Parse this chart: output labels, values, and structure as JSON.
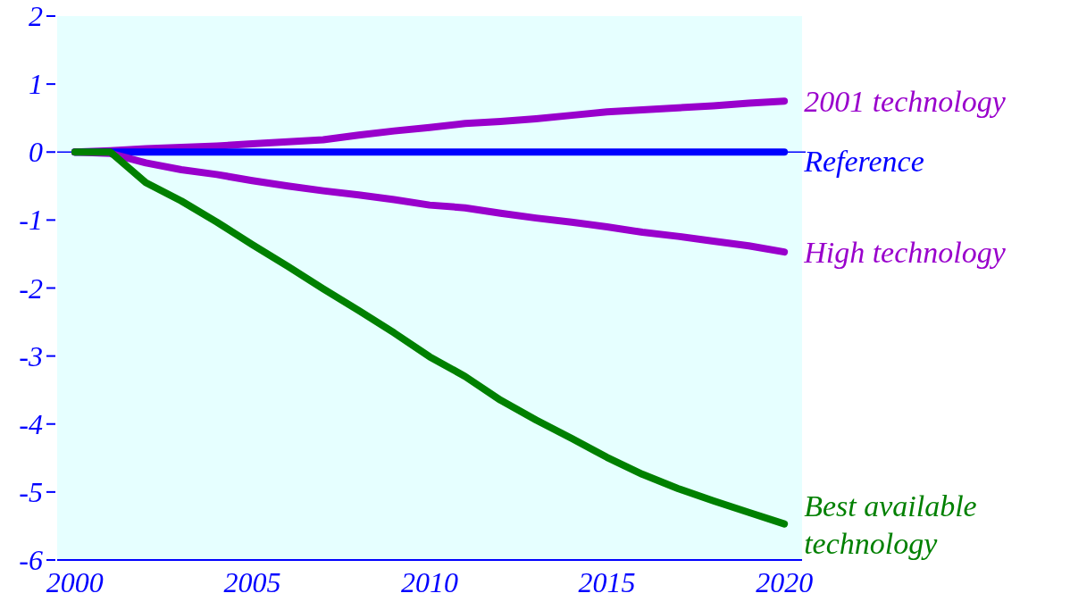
{
  "chart_data": {
    "type": "line",
    "x": [
      2000,
      2001,
      2002,
      2003,
      2004,
      2005,
      2006,
      2007,
      2008,
      2009,
      2010,
      2011,
      2012,
      2013,
      2014,
      2015,
      2016,
      2017,
      2018,
      2019,
      2020
    ],
    "series": [
      {
        "name": "2001 technology",
        "color": "#9900cc",
        "values": [
          0,
          0.02,
          0.05,
          0.07,
          0.09,
          0.12,
          0.15,
          0.18,
          0.25,
          0.31,
          0.36,
          0.42,
          0.45,
          0.49,
          0.54,
          0.59,
          0.62,
          0.65,
          0.68,
          0.72,
          0.75
        ]
      },
      {
        "name": "Reference",
        "color": "#0000ff",
        "values": [
          0,
          0,
          0,
          0,
          0,
          0,
          0,
          0,
          0,
          0,
          0,
          0,
          0,
          0,
          0,
          0,
          0,
          0,
          0,
          0,
          0
        ]
      },
      {
        "name": "High technology",
        "color": "#9900cc",
        "values": [
          0,
          -0.02,
          -0.16,
          -0.26,
          -0.33,
          -0.42,
          -0.5,
          -0.57,
          -0.63,
          -0.7,
          -0.78,
          -0.82,
          -0.9,
          -0.97,
          -1.03,
          -1.1,
          -1.18,
          -1.24,
          -1.31,
          -1.38,
          -1.47
        ]
      },
      {
        "name": "Best available technology",
        "color": "#008000",
        "values": [
          0,
          0,
          -0.45,
          -0.72,
          -1.03,
          -1.36,
          -1.68,
          -2.01,
          -2.33,
          -2.66,
          -3.01,
          -3.3,
          -3.65,
          -3.94,
          -4.21,
          -4.49,
          -4.74,
          -4.95,
          -5.13,
          -5.3,
          -5.47
        ]
      }
    ],
    "xlim": [
      1999.5,
      2020.5
    ],
    "ylim": [
      -6,
      2
    ],
    "xticks": [
      2000,
      2005,
      2010,
      2015,
      2020
    ],
    "yticks": [
      -6,
      -5,
      -4,
      -3,
      -2,
      -1,
      0,
      1,
      2
    ],
    "ref_lines": [
      {
        "axis": "y",
        "value": 0,
        "color": "#0000ff"
      }
    ],
    "grid": false,
    "marker": "none",
    "line_style": "solid"
  }
}
